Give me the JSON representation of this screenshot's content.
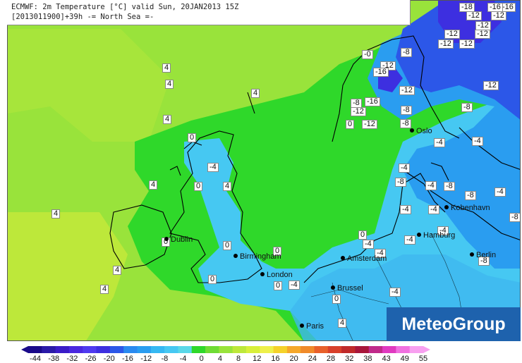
{
  "header": {
    "line1": "ECMWF: 2m Temperature [°C] valid Sun, 20JAN2013 15Z",
    "line2": "[2013011900]+39h  -= North Sea =-"
  },
  "branding": {
    "logo_text": "MeteoGroup",
    "logo_color": "#1e62ad"
  },
  "colors": {
    "sea_4": "#99e33b",
    "land_4": "#bde83a",
    "band_0": "#2fd82a",
    "band_m4": "#46c8f2",
    "band_m8": "#2a9df0",
    "band_m12": "#2c57e8",
    "band_m16": "#3d2fe0"
  },
  "cities": [
    {
      "name": "Dublin"
    },
    {
      "name": "Birmingham"
    },
    {
      "name": "London"
    },
    {
      "name": "Amsterdam"
    },
    {
      "name": "Brussel"
    },
    {
      "name": "Paris"
    },
    {
      "name": "Hamburg"
    },
    {
      "name": "Kobenhavn"
    },
    {
      "name": "Oslo"
    },
    {
      "name": "Berlin"
    }
  ],
  "value_labels": [
    "4",
    "4",
    "4",
    "4",
    "4",
    "4",
    "4",
    "4",
    "4",
    "4",
    "0",
    "0",
    "0",
    "0",
    "0",
    "0",
    "0",
    "0",
    "0",
    "0",
    "-4",
    "-4",
    "-4",
    "-4",
    "-4",
    "-4",
    "-4",
    "-4",
    "-4",
    "-4",
    "-4",
    "-4",
    "-4",
    "-4",
    "-8",
    "-8",
    "-8",
    "-8",
    "-8",
    "-8",
    "-8",
    "-8",
    "-8",
    "-8",
    "-12",
    "-12",
    "-12",
    "-12",
    "-12",
    "-12",
    "-12",
    "-12",
    "-12",
    "-12",
    "-12",
    "-12",
    "-16",
    "-16",
    "-16",
    "-16",
    "-18",
    "-0"
  ],
  "legend": {
    "ticks": [
      "-44",
      "-38",
      "-32",
      "-26",
      "-20",
      "-16",
      "-12",
      "-8",
      "-4",
      "0",
      "4",
      "8",
      "12",
      "16",
      "20",
      "24",
      "28",
      "32",
      "38",
      "43",
      "49",
      "55"
    ],
    "colors": [
      "#1a0a8a",
      "#2a1aa8",
      "#3a1cc8",
      "#4a28e0",
      "#4f3aef",
      "#3d2fe0",
      "#2c57e8",
      "#2a8af0",
      "#2a9df0",
      "#35b8f2",
      "#46c8f2",
      "#5ad8e8",
      "#2fd82a",
      "#6fdc34",
      "#99e33b",
      "#bde83a",
      "#d8ef3a",
      "#eef04a",
      "#f5d22a",
      "#f5a82a",
      "#f08a2a",
      "#e8602a",
      "#d8402a",
      "#c02a2a",
      "#a8163a",
      "#c02a8a",
      "#e03ac0",
      "#f070e0",
      "#f8a0f0"
    ]
  }
}
